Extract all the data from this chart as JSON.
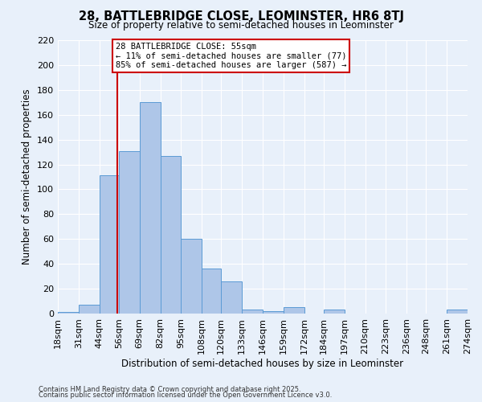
{
  "title": "28, BATTLEBRIDGE CLOSE, LEOMINSTER, HR6 8TJ",
  "subtitle": "Size of property relative to semi-detached houses in Leominster",
  "xlabel": "Distribution of semi-detached houses by size in Leominster",
  "ylabel": "Number of semi-detached properties",
  "bin_edges": [
    18,
    31,
    44,
    56,
    69,
    82,
    95,
    108,
    120,
    133,
    146,
    159,
    172,
    184,
    197,
    210,
    223,
    236,
    248,
    261,
    274
  ],
  "bin_heights": [
    1,
    7,
    111,
    131,
    170,
    127,
    60,
    36,
    26,
    3,
    2,
    5,
    0,
    3,
    0,
    0,
    0,
    0,
    0,
    3
  ],
  "bar_color": "#aec6e8",
  "bar_edge_color": "#5b9bd5",
  "background_color": "#e8f0fa",
  "grid_color": "#ffffff",
  "vline_x": 55,
  "vline_color": "#cc0000",
  "annotation_title": "28 BATTLEBRIDGE CLOSE: 55sqm",
  "annotation_line1": "← 11% of semi-detached houses are smaller (77)",
  "annotation_line2": "85% of semi-detached houses are larger (587) →",
  "annotation_box_color": "#ffffff",
  "annotation_box_edge": "#cc0000",
  "ylim": [
    0,
    220
  ],
  "yticks": [
    0,
    20,
    40,
    60,
    80,
    100,
    120,
    140,
    160,
    180,
    200,
    220
  ],
  "footer1": "Contains HM Land Registry data © Crown copyright and database right 2025.",
  "footer2": "Contains public sector information licensed under the Open Government Licence v3.0.",
  "tick_labels": [
    "18sqm",
    "31sqm",
    "44sqm",
    "56sqm",
    "69sqm",
    "82sqm",
    "95sqm",
    "108sqm",
    "120sqm",
    "133sqm",
    "146sqm",
    "159sqm",
    "172sqm",
    "184sqm",
    "197sqm",
    "210sqm",
    "223sqm",
    "236sqm",
    "248sqm",
    "261sqm",
    "274sqm"
  ]
}
